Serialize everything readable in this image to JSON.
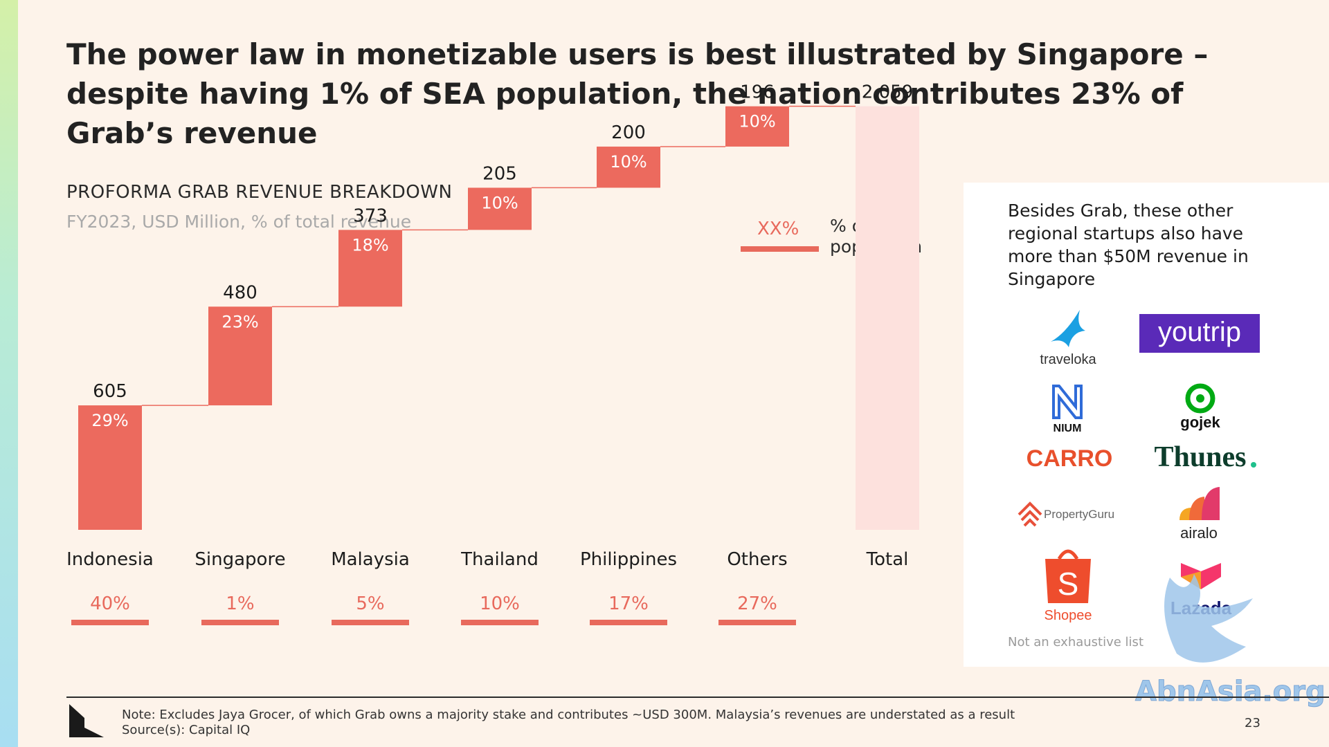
{
  "headline": "The power law in monetizable users is best illustrated by Singapore – despite having 1% of SEA population, the nation contributes 23% of Grab’s revenue",
  "chart_header": {
    "title": "PROFORMA GRAB REVENUE BREAKDOWN",
    "subtitle": "FY2023, USD Million, % of total revenue"
  },
  "legend": {
    "sample": "XX%",
    "label": "% of SEA population"
  },
  "chart_data": {
    "type": "waterfall",
    "title": "PROFORMA GRAB REVENUE BREAKDOWN",
    "subtitle": "FY2023, USD Million, % of total revenue",
    "categories": [
      "Indonesia",
      "Singapore",
      "Malaysia",
      "Thailand",
      "Philippines",
      "Others",
      "Total"
    ],
    "values": [
      605,
      480,
      373,
      205,
      200,
      196,
      2059
    ],
    "value_labels": [
      "605",
      "480",
      "373",
      "205",
      "200",
      "196",
      "2,059"
    ],
    "revenue_share_labels": [
      "29%",
      "23%",
      "18%",
      "10%",
      "10%",
      "10%"
    ],
    "population_share_labels": [
      "40%",
      "1%",
      "5%",
      "10%",
      "17%",
      "27%"
    ],
    "legend": "% of SEA population",
    "colors": {
      "bar": "#ec6a5e",
      "total": "#fde1dd",
      "population": "#e8695c",
      "connector": "#ec6a5e"
    }
  },
  "side_panel": {
    "text": "Besides Grab, these other regional startups also have more than $50M revenue in Singapore",
    "logos": [
      "traveloka",
      "youtrip",
      "NIUM",
      "gojek",
      "CARRO",
      "Thunes.",
      "PropertyGuru",
      "airalo",
      "Shopee",
      "Lazada"
    ],
    "note": "Not an exhaustive list"
  },
  "footer": {
    "note": "Note: Excludes Jaya Grocer, of which Grab owns a majority stake and contributes ~USD 300M. Malaysia’s revenues are understated as a result",
    "source": "Source(s): Capital IQ",
    "page_number": "23"
  },
  "watermark": "AbnAsia.org"
}
